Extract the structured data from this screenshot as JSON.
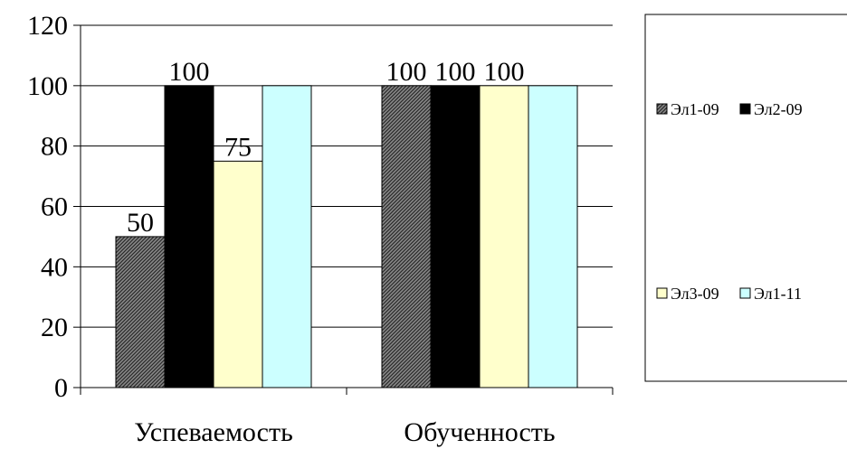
{
  "chart_data": {
    "type": "bar",
    "categories": [
      "Успеваемость",
      "Обученность"
    ],
    "series": [
      {
        "name": "Эл1-09",
        "values": [
          50,
          100
        ],
        "color": "#5a5a5a",
        "pattern": "diagonal-hatch"
      },
      {
        "name": "Эл2-09",
        "values": [
          100,
          100
        ],
        "color": "#000000"
      },
      {
        "name": "Эл3-09",
        "values": [
          75,
          100
        ],
        "color": "#ffffcc"
      },
      {
        "name": "Эл1-11",
        "values": [
          100,
          100
        ],
        "color": "#ccffff"
      }
    ],
    "data_labels": [
      [
        "50",
        "100"
      ],
      [
        "100",
        "100"
      ],
      [
        "75",
        "100"
      ],
      [
        "",
        ""
      ]
    ],
    "y_ticks": [
      "0",
      "20",
      "40",
      "60",
      "80",
      "100",
      "120"
    ],
    "ylim": [
      0,
      120
    ],
    "grid": true,
    "legend_position": "right"
  }
}
